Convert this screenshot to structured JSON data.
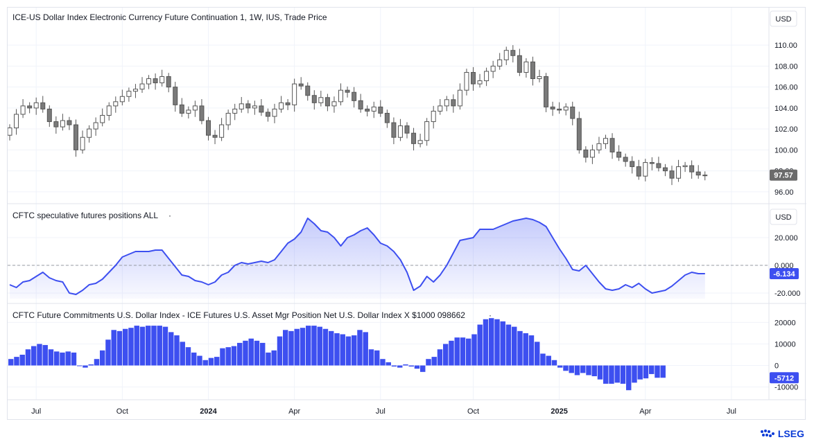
{
  "brand": {
    "name": "LSEG"
  },
  "colors": {
    "candle_up_fill": "#ffffff",
    "candle_stroke": "#555555",
    "candle_down_fill": "#7a7a7a",
    "line": "#3d4ff0",
    "area": "#5b6cf5",
    "bar": "#3d4ff0",
    "label_bg": "#3d4ff0",
    "price_label_bg": "#6b6b6b",
    "grid": "#f0f3fa"
  },
  "x_axis": {
    "ticks": [
      {
        "label": "Jul",
        "t": 4,
        "bold": false
      },
      {
        "label": "Oct",
        "t": 17,
        "bold": false
      },
      {
        "label": "2024",
        "t": 30,
        "bold": true
      },
      {
        "label": "Apr",
        "t": 43,
        "bold": false
      },
      {
        "label": "Jul",
        "t": 56,
        "bold": false
      },
      {
        "label": "Oct",
        "t": 70,
        "bold": false
      },
      {
        "label": "2025",
        "t": 83,
        "bold": true
      },
      {
        "label": "Apr",
        "t": 96,
        "bold": false
      },
      {
        "label": "Jul",
        "t": 109,
        "bold": false
      }
    ]
  },
  "chart_data": [
    {
      "type": "candlestick",
      "title": "ICE-US Dollar Index Electronic Currency Future Continuation 1, 1W, IUS, Trade Price",
      "currency": "USD",
      "last_value": "97.57",
      "yticks": [
        96,
        98,
        100,
        102,
        104,
        106,
        108,
        110
      ],
      "ytick_labels": [
        "96.00",
        "98.00",
        "100.00",
        "102.00",
        "104.00",
        "106.00",
        "108.00",
        "110.00"
      ],
      "ylim": [
        95.2,
        111.2
      ],
      "closes": [
        102.1,
        103.4,
        104.2,
        104.0,
        104.5,
        103.9,
        102.7,
        102.2,
        102.8,
        102.4,
        100.0,
        101.2,
        102.0,
        102.6,
        103.3,
        104.2,
        104.6,
        105.1,
        105.6,
        105.8,
        106.3,
        106.8,
        106.4,
        107.0,
        106.0,
        104.3,
        103.5,
        103.8,
        104.2,
        102.8,
        101.4,
        101.2,
        102.4,
        103.5,
        103.9,
        104.4,
        104.0,
        104.2,
        103.6,
        103.2,
        103.9,
        104.5,
        104.3,
        106.3,
        106.1,
        105.2,
        104.5,
        105.0,
        104.2,
        104.6,
        105.7,
        105.5,
        104.7,
        103.9,
        103.7,
        104.1,
        103.5,
        102.6,
        101.2,
        102.3,
        101.6,
        100.6,
        100.9,
        102.7,
        103.7,
        104.2,
        104.8,
        104.2,
        105.7,
        107.4,
        106.3,
        106.6,
        107.5,
        108.0,
        108.6,
        109.5,
        109.0,
        107.4,
        108.4,
        106.8,
        107.0,
        104.1,
        103.9,
        103.8,
        104.1,
        103.0,
        100.0,
        99.3,
        100.0,
        100.6,
        101.1,
        99.8,
        99.3,
        98.9,
        98.4,
        97.5,
        98.8,
        98.7,
        98.3,
        98.0,
        97.3,
        98.4,
        98.5,
        97.9,
        97.6,
        97.6
      ],
      "candle_range": {
        "first_open": 101.4,
        "max_wick": 111.0,
        "min_wick": 96.1
      }
    },
    {
      "type": "area",
      "title": "CFTC speculative futures positions ALL",
      "currency": "USD",
      "last_value": "-6.134",
      "yticks": [
        -20,
        0,
        20
      ],
      "ytick_labels": [
        "-20.000",
        "0.000",
        "20.000"
      ],
      "ylim": [
        -24,
        36
      ],
      "baseline": 0,
      "values": [
        -14,
        -16,
        -12,
        -11,
        -8,
        -5,
        -9,
        -11,
        -12,
        -20,
        -21,
        -18,
        -14,
        -13,
        -10,
        -5,
        0,
        6,
        8,
        10,
        10,
        10,
        11,
        11,
        5,
        -1,
        -7,
        -8,
        -11,
        -12,
        -14,
        -12,
        -7,
        -5,
        0,
        2,
        1,
        2,
        3,
        2,
        4,
        10,
        16,
        19,
        24,
        34,
        30,
        25,
        24,
        20,
        14,
        20,
        22,
        25,
        27,
        22,
        16,
        14,
        10,
        4,
        -5,
        -18,
        -15,
        -8,
        -12,
        -7,
        0,
        9,
        18,
        19,
        20,
        26,
        26,
        26,
        28,
        30,
        32,
        33,
        34,
        33,
        31,
        28,
        20,
        12,
        5,
        -3,
        -4,
        0,
        -6,
        -12,
        -17,
        -18,
        -17,
        -14,
        -16,
        -13,
        -17,
        -20,
        -19,
        -18,
        -15,
        -11,
        -7,
        -5,
        -6,
        -6
      ]
    },
    {
      "type": "bar",
      "title": "CFTC Future Commitments U.S. Dollar Index - ICE Futures U.S. Asset Mgr Position Net U.S. Dollar Index X $1000 098662",
      "last_value": "-5712",
      "yticks": [
        -10000,
        0,
        10000,
        20000
      ],
      "ytick_labels": [
        "-10000",
        "0",
        "10000",
        "20000"
      ],
      "ylim": [
        -14000,
        24000
      ],
      "values": [
        3000,
        4000,
        5000,
        7500,
        9000,
        10000,
        9500,
        7500,
        6500,
        6000,
        6500,
        6000,
        0,
        -1000,
        500,
        3000,
        7000,
        12000,
        16500,
        16000,
        17000,
        17500,
        18500,
        18000,
        18500,
        18500,
        18500,
        18000,
        15500,
        14000,
        11000,
        8500,
        6000,
        4500,
        2500,
        3500,
        4000,
        8000,
        8500,
        9000,
        10500,
        11500,
        12500,
        11500,
        10500,
        6000,
        7000,
        13500,
        16500,
        16000,
        17000,
        17500,
        18500,
        18500,
        18000,
        17000,
        16000,
        15000,
        14500,
        13500,
        14000,
        16500,
        15500,
        7500,
        7000,
        3000,
        1500,
        -500,
        -1000,
        500,
        -500,
        -1500,
        -3000,
        3000,
        4000,
        7500,
        10000,
        11500,
        13000,
        13000,
        12500,
        14500,
        19000,
        21500,
        22000,
        21500,
        20500,
        19000,
        18000,
        16000,
        15000,
        14000,
        11000,
        5500,
        4500,
        2500,
        -1000,
        -2500,
        -3500,
        -4500,
        -3500,
        -4500,
        -5000,
        -6500,
        -8500,
        -8500,
        -8000,
        -8500,
        -11500,
        -8000,
        -6500,
        -6000,
        -4000,
        -5712,
        -5712
      ]
    }
  ]
}
